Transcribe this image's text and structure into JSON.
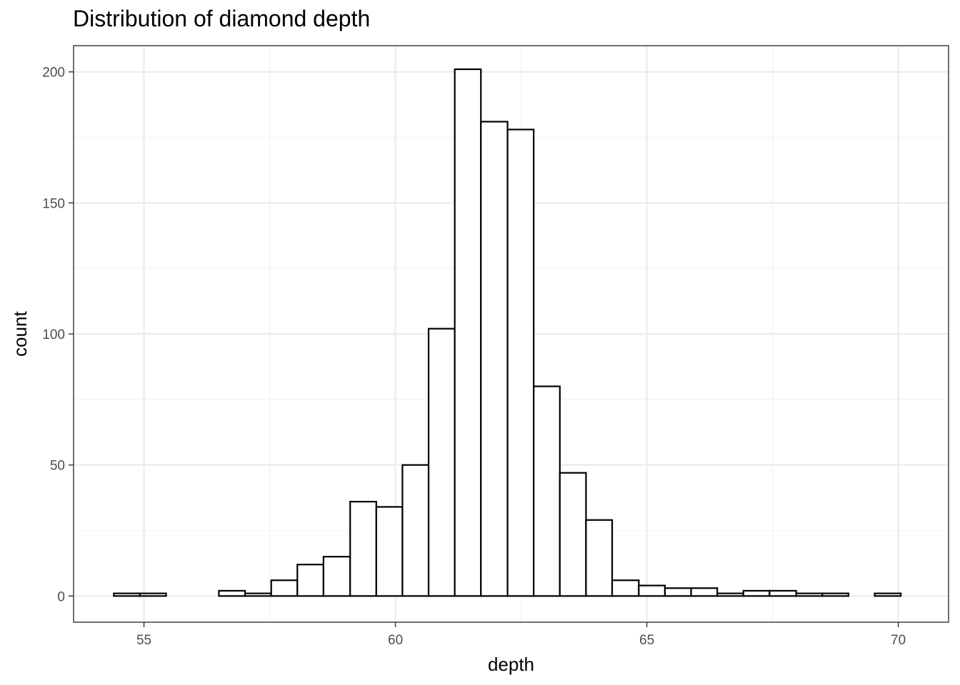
{
  "chart_data": {
    "type": "bar",
    "title": "Distribution of diamond depth",
    "xlabel": "depth",
    "ylabel": "count",
    "x_ticks": [
      55,
      60,
      65,
      70
    ],
    "y_ticks": [
      0,
      50,
      100,
      150,
      200
    ],
    "xlim": [
      53.6,
      71.0
    ],
    "ylim": [
      -10,
      210
    ],
    "grid": true,
    "bin_width": 0.522,
    "bins": [
      {
        "x0": 54.4,
        "x1": 54.92,
        "count": 1
      },
      {
        "x0": 54.92,
        "x1": 55.44,
        "count": 1
      },
      {
        "x0": 55.44,
        "x1": 55.96,
        "count": 0
      },
      {
        "x0": 55.96,
        "x1": 56.49,
        "count": 0
      },
      {
        "x0": 56.49,
        "x1": 57.01,
        "count": 2
      },
      {
        "x0": 57.01,
        "x1": 57.53,
        "count": 1
      },
      {
        "x0": 57.53,
        "x1": 58.05,
        "count": 6
      },
      {
        "x0": 58.05,
        "x1": 58.57,
        "count": 12
      },
      {
        "x0": 58.57,
        "x1": 59.1,
        "count": 15
      },
      {
        "x0": 59.1,
        "x1": 59.62,
        "count": 36
      },
      {
        "x0": 59.62,
        "x1": 60.14,
        "count": 34
      },
      {
        "x0": 60.14,
        "x1": 60.66,
        "count": 50
      },
      {
        "x0": 60.66,
        "x1": 61.18,
        "count": 102
      },
      {
        "x0": 61.18,
        "x1": 61.7,
        "count": 201
      },
      {
        "x0": 61.7,
        "x1": 62.23,
        "count": 181
      },
      {
        "x0": 62.23,
        "x1": 62.75,
        "count": 178
      },
      {
        "x0": 62.75,
        "x1": 63.27,
        "count": 80
      },
      {
        "x0": 63.27,
        "x1": 63.79,
        "count": 47
      },
      {
        "x0": 63.79,
        "x1": 64.31,
        "count": 29
      },
      {
        "x0": 64.31,
        "x1": 64.84,
        "count": 6
      },
      {
        "x0": 64.84,
        "x1": 65.36,
        "count": 4
      },
      {
        "x0": 65.36,
        "x1": 65.88,
        "count": 3
      },
      {
        "x0": 65.88,
        "x1": 66.4,
        "count": 3
      },
      {
        "x0": 66.4,
        "x1": 66.92,
        "count": 1
      },
      {
        "x0": 66.92,
        "x1": 67.44,
        "count": 2
      },
      {
        "x0": 67.44,
        "x1": 67.97,
        "count": 2
      },
      {
        "x0": 67.97,
        "x1": 68.49,
        "count": 1
      },
      {
        "x0": 68.49,
        "x1": 69.01,
        "count": 1
      },
      {
        "x0": 69.01,
        "x1": 69.53,
        "count": 0
      },
      {
        "x0": 69.53,
        "x1": 70.05,
        "count": 1
      }
    ],
    "colors": {
      "bar_fill": "#ffffff",
      "bar_stroke": "#000000",
      "grid_major": "#ebebeb",
      "grid_minor": "#f2f2f2",
      "panel_border": "#333333",
      "tick_text": "#4d4d4d"
    }
  }
}
